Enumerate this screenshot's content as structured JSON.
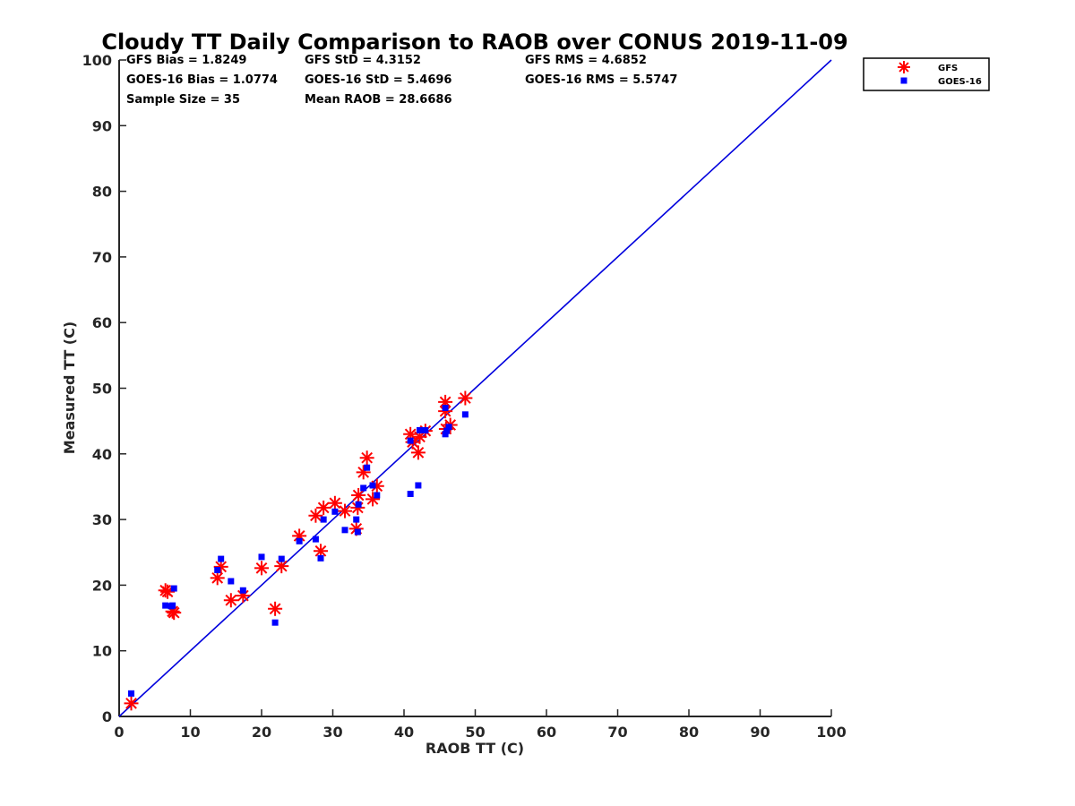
{
  "chart_data": {
    "type": "scatter",
    "title": "Cloudy TT Daily Comparison to RAOB over CONUS 2019-11-09",
    "xlabel": "RAOB TT (C)",
    "ylabel": "Measured TT (C)",
    "xlim": [
      0,
      100
    ],
    "ylim": [
      0,
      100
    ],
    "xticks": [
      "0",
      "10",
      "20",
      "30",
      "40",
      "50",
      "60",
      "70",
      "80",
      "90",
      "100"
    ],
    "yticks": [
      "0",
      "10",
      "20",
      "30",
      "40",
      "50",
      "60",
      "70",
      "80",
      "90",
      "100"
    ],
    "grid": false,
    "legend_position": "top-right-outside",
    "stats": {
      "gfs_bias": "GFS Bias = 1.8249",
      "gfs_std": "GFS StD = 4.3152",
      "gfs_rms": "GFS RMS = 4.6852",
      "goes_bias": "GOES-16 Bias = 1.0774",
      "goes_std": "GOES-16 StD = 5.4696",
      "goes_rms": "GOES-16 RMS = 5.5747",
      "sample_size": "Sample Size = 35",
      "mean_raob": "Mean RAOB = 28.6686"
    },
    "reference_line": {
      "x": [
        0,
        100
      ],
      "y": [
        0,
        100
      ],
      "color": "#0000dd"
    },
    "series": [
      {
        "name": "GFS",
        "marker": "asterisk",
        "color": "#ff0000",
        "x": [
          1.7,
          6.5,
          7.5,
          7.7,
          13.8,
          14.3,
          15.7,
          17.4,
          20.0,
          21.9,
          22.8,
          25.3,
          27.6,
          28.3,
          28.7,
          30.3,
          31.7,
          33.3,
          33.5,
          33.6,
          34.3,
          34.8,
          35.6,
          36.2,
          40.9,
          41.2,
          42.0,
          42.2,
          43.0,
          45.8,
          45.8,
          45.9,
          46.5,
          48.6,
          6.8
        ],
        "y": [
          2.0,
          19.2,
          16.0,
          15.8,
          21.1,
          22.8,
          17.7,
          18.4,
          22.6,
          16.4,
          22.9,
          27.5,
          30.6,
          25.2,
          31.8,
          32.5,
          31.3,
          28.6,
          31.8,
          33.7,
          37.2,
          39.4,
          33.1,
          35.1,
          43.0,
          41.8,
          40.2,
          42.6,
          43.5,
          47.9,
          46.5,
          43.8,
          44.4,
          48.5,
          19.0
        ]
      },
      {
        "name": "GOES-16",
        "marker": "square",
        "color": "#0000ff",
        "x": [
          1.7,
          6.5,
          7.3,
          7.7,
          13.8,
          14.3,
          15.7,
          17.4,
          20.0,
          21.9,
          22.8,
          25.3,
          27.6,
          28.3,
          28.7,
          30.3,
          31.7,
          33.3,
          33.5,
          33.6,
          34.3,
          34.8,
          35.6,
          36.2,
          40.9,
          40.9,
          42.0,
          42.2,
          43.0,
          45.8,
          46.0,
          46.3,
          48.6,
          45.8,
          7.5
        ],
        "y": [
          3.5,
          16.9,
          16.8,
          19.5,
          22.3,
          24.0,
          20.6,
          19.2,
          24.3,
          14.3,
          24.0,
          26.7,
          27.0,
          24.1,
          30.0,
          31.2,
          28.4,
          30.0,
          28.1,
          32.3,
          34.8,
          37.9,
          35.2,
          33.7,
          42.0,
          33.9,
          35.2,
          43.6,
          43.6,
          47.0,
          43.5,
          44.1,
          46.0,
          43.0,
          16.9
        ]
      }
    ]
  }
}
